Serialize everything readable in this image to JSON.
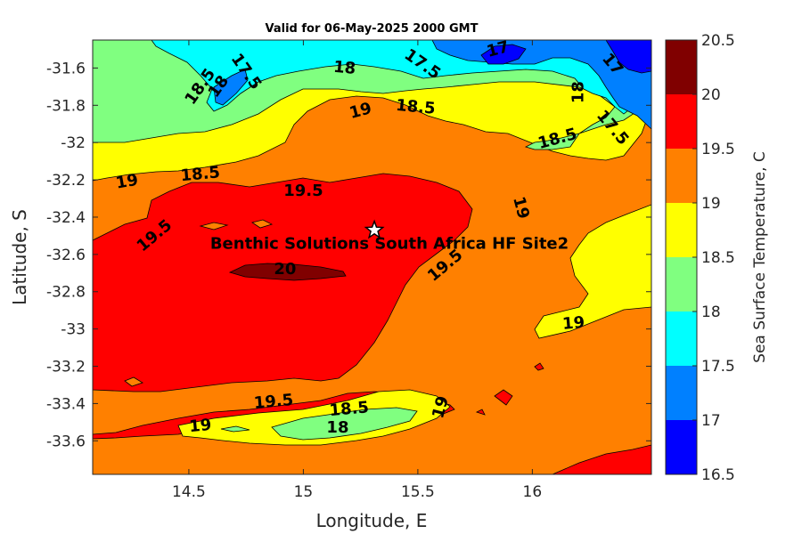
{
  "chart_data": {
    "type": "contour",
    "title": "Valid for 06-May-2025 2000 GMT",
    "xlabel": "Longitude, E",
    "ylabel": "Latitude, S",
    "xlim": [
      14.08,
      16.52
    ],
    "ylim": [
      -33.78,
      -31.45
    ],
    "x_ticks": [
      "14.5",
      "15",
      "15.5",
      "16"
    ],
    "x_tick_values": [
      14.5,
      15,
      15.5,
      16
    ],
    "y_ticks": [
      "-31.6",
      "-31.8",
      "-32",
      "-32.2",
      "-32.4",
      "-32.6",
      "-32.8",
      "-33",
      "-33.2",
      "-33.4",
      "-33.6"
    ],
    "y_tick_values": [
      -31.6,
      -31.8,
      -32,
      -32.2,
      -32.4,
      -32.6,
      -32.8,
      -33,
      -33.2,
      -33.4,
      -33.6
    ],
    "contour_levels": [
      16.5,
      17,
      17.5,
      18,
      18.5,
      19,
      19.5,
      20,
      20.5
    ],
    "colorbar": {
      "label": "Sea Surface Temperature, C",
      "ticks": [
        "16.5",
        "17",
        "17.5",
        "18",
        "18.5",
        "19",
        "19.5",
        "20",
        "20.5"
      ],
      "colors": [
        "#0000ff",
        "#0080ff",
        "#00ffff",
        "#80ff80",
        "#ffff00",
        "#ff8000",
        "#ff0000",
        "#800000"
      ]
    },
    "contour_labels": [
      {
        "text": "18.5",
        "lon": 14.55,
        "lat": -31.7,
        "angle": -55
      },
      {
        "text": "18",
        "lon": 14.63,
        "lat": -31.7,
        "angle": -55
      },
      {
        "text": "17.5",
        "lon": 14.75,
        "lat": -31.62,
        "angle": 55
      },
      {
        "text": "18",
        "lon": 15.18,
        "lat": -31.6,
        "angle": 5
      },
      {
        "text": "17",
        "lon": 15.85,
        "lat": -31.5,
        "angle": -15
      },
      {
        "text": "17.5",
        "lon": 15.52,
        "lat": -31.58,
        "angle": 35
      },
      {
        "text": "17",
        "lon": 16.35,
        "lat": -31.58,
        "angle": 50
      },
      {
        "text": "18",
        "lon": 16.2,
        "lat": -31.73,
        "angle": -90
      },
      {
        "text": "17.5",
        "lon": 16.35,
        "lat": -31.92,
        "angle": 50
      },
      {
        "text": "19",
        "lon": 15.25,
        "lat": -31.83,
        "angle": -15
      },
      {
        "text": "18.5",
        "lon": 15.49,
        "lat": -31.81,
        "angle": 5
      },
      {
        "text": "18.5",
        "lon": 16.11,
        "lat": -31.98,
        "angle": -15
      },
      {
        "text": "19",
        "lon": 14.23,
        "lat": -32.21,
        "angle": -10
      },
      {
        "text": "18.5",
        "lon": 14.55,
        "lat": -32.17,
        "angle": -5
      },
      {
        "text": "19.5",
        "lon": 15.0,
        "lat": -32.26,
        "angle": 0
      },
      {
        "text": "19.5",
        "lon": 14.35,
        "lat": -32.5,
        "angle": -40
      },
      {
        "text": "19",
        "lon": 15.95,
        "lat": -32.35,
        "angle": 75
      },
      {
        "text": "20",
        "lon": 14.92,
        "lat": -32.68,
        "angle": 0
      },
      {
        "text": "19.5",
        "lon": 15.62,
        "lat": -32.66,
        "angle": -40
      },
      {
        "text": "19",
        "lon": 16.18,
        "lat": -32.97,
        "angle": -5
      },
      {
        "text": "19.5",
        "lon": 14.87,
        "lat": -33.39,
        "angle": -5
      },
      {
        "text": "19",
        "lon": 14.55,
        "lat": -33.52,
        "angle": -5
      },
      {
        "text": "18.5",
        "lon": 15.2,
        "lat": -33.43,
        "angle": -5
      },
      {
        "text": "18",
        "lon": 15.15,
        "lat": -33.53,
        "angle": 0
      },
      {
        "text": "19",
        "lon": 15.6,
        "lat": -33.42,
        "angle": -75
      }
    ],
    "site": {
      "name": "Benthic Solutions South Africa HF Site2",
      "lon": 15.31,
      "lat": -32.47
    }
  }
}
